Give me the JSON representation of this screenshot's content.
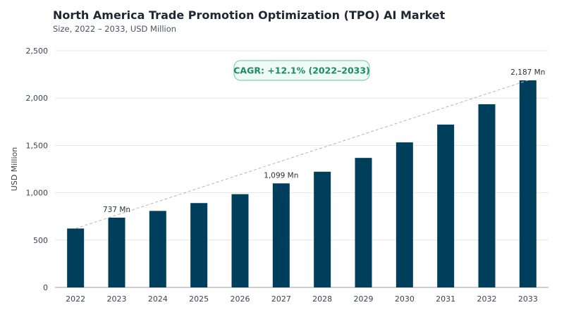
{
  "title": "North America Trade Promotion Optimization (TPO) AI Market",
  "subtitle": "Size, 2022 – 2033, USD Million",
  "chart_data": {
    "type": "bar",
    "categories": [
      "2022",
      "2023",
      "2024",
      "2025",
      "2026",
      "2027",
      "2028",
      "2029",
      "2030",
      "2031",
      "2032",
      "2033"
    ],
    "values": [
      622,
      737,
      808,
      891,
      985,
      1099,
      1222,
      1368,
      1532,
      1720,
      1935,
      2187
    ],
    "ylabel": "USD Million",
    "xlabel": "",
    "ylim": [
      0,
      2500
    ],
    "yticks": [
      0,
      500,
      1000,
      1500,
      2000,
      2500
    ],
    "ytick_labels": [
      "0",
      "500",
      "1,000",
      "1,500",
      "2,000",
      "2,500"
    ],
    "grid": true,
    "bar_color": "#003f5c",
    "data_labels": [
      {
        "category": "2023",
        "text": "737 Mn"
      },
      {
        "category": "2027",
        "text": "1,099 Mn"
      },
      {
        "category": "2033",
        "text": "2,187 Mn"
      }
    ],
    "trend_line": {
      "from": "2022",
      "to": "2033",
      "style": "dashed",
      "color": "#b5b5b5"
    },
    "annotation": {
      "text": "CAGR: +12.1% (2022–2033)",
      "color": "#1e8a63",
      "border": "#7fd1b0",
      "fill": "#eefaf4"
    }
  }
}
